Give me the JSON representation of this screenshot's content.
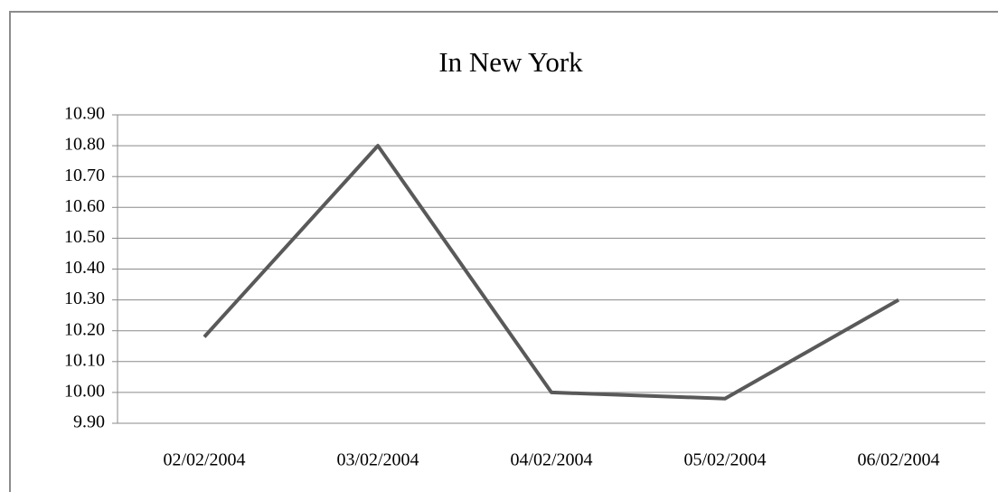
{
  "chart_data": {
    "type": "line",
    "title": "In New York",
    "categories": [
      "02/02/2004",
      "03/02/2004",
      "04/02/2004",
      "05/02/2004",
      "06/02/2004"
    ],
    "values": [
      10.18,
      10.8,
      10.0,
      9.98,
      10.3
    ],
    "color": "#595959",
    "ylim": [
      9.9,
      10.9
    ],
    "yticks": [
      {
        "value": 9.9,
        "label": "9.90"
      },
      {
        "value": 10.0,
        "label": "10.00"
      },
      {
        "value": 10.1,
        "label": "10.10"
      },
      {
        "value": 10.2,
        "label": "10.20"
      },
      {
        "value": 10.3,
        "label": "10.30"
      },
      {
        "value": 10.4,
        "label": "10.40"
      },
      {
        "value": 10.5,
        "label": "10.50"
      },
      {
        "value": 10.6,
        "label": "10.60"
      },
      {
        "value": 10.7,
        "label": "10.70"
      },
      {
        "value": 10.8,
        "label": "10.80"
      },
      {
        "value": 10.9,
        "label": "10.90"
      }
    ],
    "grid": true
  }
}
